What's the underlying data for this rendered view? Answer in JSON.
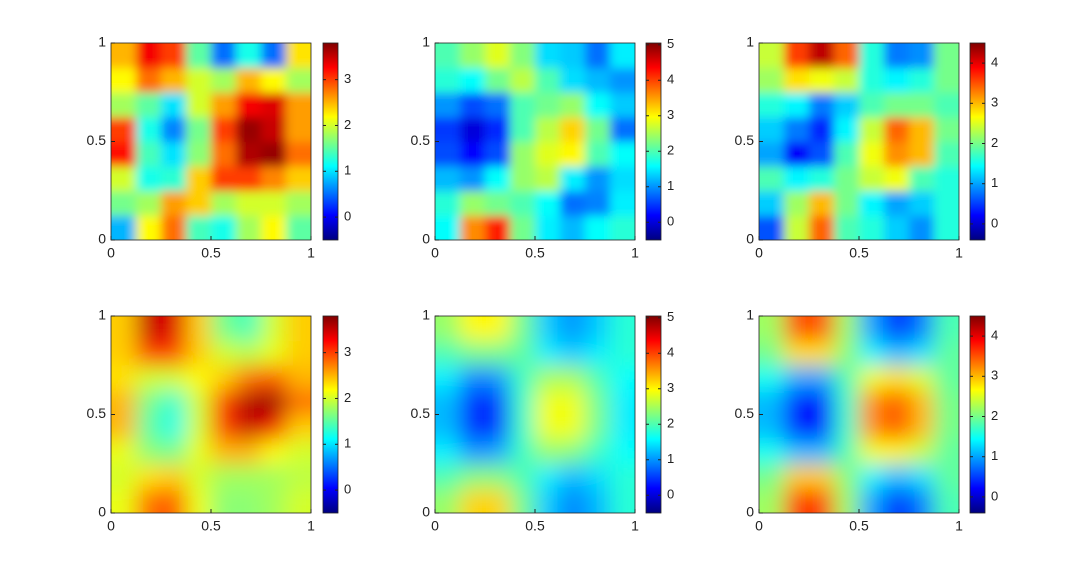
{
  "chart_data": [
    {
      "type": "heatmap",
      "colormap": "jet",
      "xlim": [
        0,
        1
      ],
      "ylim": [
        0,
        1
      ],
      "xticks": [
        0,
        0.5,
        1
      ],
      "yticks": [
        0,
        0.5,
        1
      ],
      "clim": [
        -0.5,
        3.8
      ],
      "cticks": [
        0,
        1,
        2,
        3
      ],
      "smooth": false,
      "z": [
        [
          0.8,
          2.2,
          2.8,
          1.4,
          1.2,
          1.8,
          2.2,
          1.5
        ],
        [
          1.6,
          1.8,
          2.6,
          2.4,
          1.8,
          2.0,
          2.0,
          1.8
        ],
        [
          2.0,
          1.2,
          1.3,
          2.4,
          3.0,
          3.0,
          2.7,
          2.4
        ],
        [
          3.2,
          1.4,
          1.0,
          1.7,
          2.8,
          3.6,
          3.7,
          2.8
        ],
        [
          3.0,
          1.2,
          0.6,
          1.6,
          3.0,
          3.7,
          3.5,
          2.6
        ],
        [
          1.8,
          1.5,
          1.0,
          2.0,
          2.6,
          3.3,
          3.4,
          2.6
        ],
        [
          2.2,
          2.8,
          2.5,
          2.0,
          1.8,
          2.5,
          2.2,
          1.8
        ],
        [
          2.5,
          3.3,
          3.0,
          1.5,
          0.5,
          1.2,
          0.5,
          2.3
        ]
      ]
    },
    {
      "type": "heatmap",
      "colormap": "jet",
      "xlim": [
        0,
        1
      ],
      "ylim": [
        0,
        1
      ],
      "xticks": [
        0,
        0.5,
        1
      ],
      "yticks": [
        0,
        0.5,
        1
      ],
      "clim": [
        -0.5,
        5.05
      ],
      "cticks": [
        0,
        1,
        2,
        3,
        4,
        5
      ],
      "smooth": false,
      "z": [
        [
          1.6,
          3.6,
          4.2,
          2.2,
          1.5,
          1.2,
          1.6,
          1.8
        ],
        [
          1.8,
          2.4,
          2.2,
          2.0,
          1.6,
          0.8,
          0.9,
          1.5
        ],
        [
          1.2,
          1.0,
          1.6,
          2.4,
          2.6,
          1.5,
          1.0,
          1.4
        ],
        [
          0.6,
          0.2,
          0.6,
          2.4,
          2.8,
          3.0,
          2.0,
          1.6
        ],
        [
          0.5,
          0.0,
          0.4,
          2.0,
          2.6,
          3.2,
          2.2,
          0.8
        ],
        [
          1.0,
          0.6,
          0.8,
          2.0,
          2.2,
          2.4,
          1.6,
          1.3
        ],
        [
          1.8,
          1.6,
          2.2,
          2.6,
          2.0,
          1.4,
          1.2,
          1.0
        ],
        [
          2.0,
          2.4,
          2.8,
          2.3,
          1.4,
          1.3,
          0.8,
          1.5
        ]
      ]
    },
    {
      "type": "heatmap",
      "colormap": "jet",
      "xlim": [
        0,
        1
      ],
      "ylim": [
        0,
        1
      ],
      "xticks": [
        0,
        0.5,
        1
      ],
      "yticks": [
        0,
        0.5,
        1
      ],
      "clim": [
        -0.4,
        4.5
      ],
      "cticks": [
        0,
        1,
        2,
        3,
        4
      ],
      "smooth": false,
      "z": [
        [
          0.6,
          2.4,
          3.4,
          1.8,
          1.6,
          1.2,
          0.9,
          1.6
        ],
        [
          1.2,
          2.2,
          3.0,
          2.0,
          1.4,
          1.0,
          1.2,
          1.6
        ],
        [
          1.8,
          1.4,
          1.6,
          2.0,
          2.4,
          2.6,
          1.8,
          1.6
        ],
        [
          1.0,
          0.2,
          0.6,
          1.8,
          2.6,
          3.2,
          3.0,
          1.8
        ],
        [
          1.2,
          0.8,
          0.4,
          1.4,
          2.4,
          3.4,
          3.0,
          2.0
        ],
        [
          1.6,
          1.4,
          0.8,
          1.2,
          1.8,
          2.0,
          2.0,
          1.8
        ],
        [
          2.2,
          2.8,
          2.6,
          2.4,
          1.6,
          1.4,
          1.6,
          2.0
        ],
        [
          2.4,
          3.6,
          4.2,
          3.4,
          1.6,
          0.8,
          0.9,
          2.0
        ]
      ]
    },
    {
      "type": "heatmap",
      "colormap": "jet",
      "xlim": [
        0,
        1
      ],
      "ylim": [
        0,
        1
      ],
      "xticks": [
        0,
        0.5,
        1
      ],
      "yticks": [
        0,
        0.5,
        1
      ],
      "clim": [
        -0.5,
        3.8
      ],
      "cticks": [
        0,
        1,
        2,
        3
      ],
      "smooth": true,
      "z": [
        [
          2.1,
          2.8,
          2.9,
          2.1,
          1.7,
          1.7,
          1.8,
          2.0
        ],
        [
          2.0,
          2.3,
          2.4,
          2.0,
          1.8,
          1.8,
          1.8,
          1.9
        ],
        [
          2.1,
          1.7,
          1.6,
          2.1,
          2.5,
          2.5,
          2.2,
          2.0
        ],
        [
          2.5,
          1.5,
          1.2,
          2.0,
          3.0,
          3.5,
          3.3,
          2.4
        ],
        [
          2.5,
          1.6,
          1.3,
          2.0,
          3.0,
          3.6,
          3.7,
          2.8
        ],
        [
          2.3,
          2.0,
          2.0,
          2.2,
          2.4,
          2.8,
          2.9,
          2.5
        ],
        [
          2.4,
          3.0,
          3.0,
          2.4,
          2.0,
          1.9,
          2.1,
          2.4
        ],
        [
          2.4,
          3.5,
          3.4,
          2.4,
          1.6,
          1.4,
          2.0,
          2.4
        ]
      ]
    },
    {
      "type": "heatmap",
      "colormap": "jet",
      "xlim": [
        0,
        1
      ],
      "ylim": [
        0,
        1
      ],
      "xticks": [
        0,
        0.5,
        1
      ],
      "yticks": [
        0,
        0.5,
        1
      ],
      "clim": [
        -0.5,
        5.05
      ],
      "cticks": [
        0,
        1,
        2,
        3,
        4,
        5
      ],
      "smooth": true,
      "z": [
        [
          2.4,
          3.2,
          3.2,
          2.2,
          1.3,
          0.9,
          1.2,
          1.8
        ],
        [
          2.0,
          2.3,
          2.3,
          2.0,
          1.5,
          1.2,
          1.4,
          1.8
        ],
        [
          1.5,
          1.0,
          1.1,
          1.9,
          2.4,
          2.3,
          1.9,
          1.6
        ],
        [
          1.2,
          0.4,
          0.5,
          1.9,
          2.9,
          2.9,
          2.2,
          1.5
        ],
        [
          1.2,
          0.4,
          0.5,
          1.9,
          2.9,
          2.9,
          2.2,
          1.5
        ],
        [
          1.5,
          0.9,
          1.0,
          1.9,
          2.5,
          2.5,
          2.0,
          1.6
        ],
        [
          2.0,
          2.2,
          2.2,
          2.1,
          1.5,
          1.3,
          1.5,
          1.8
        ],
        [
          2.4,
          3.0,
          3.0,
          2.2,
          1.3,
          1.0,
          1.3,
          1.8
        ]
      ]
    },
    {
      "type": "heatmap",
      "colormap": "jet",
      "xlim": [
        0,
        1
      ],
      "ylim": [
        0,
        1
      ],
      "xticks": [
        0,
        0.5,
        1
      ],
      "yticks": [
        0,
        0.5,
        1
      ],
      "clim": [
        -0.4,
        4.5
      ],
      "cticks": [
        0,
        1,
        2,
        3,
        4
      ],
      "smooth": true,
      "z": [
        [
          2.2,
          3.6,
          3.6,
          2.2,
          1.0,
          0.4,
          0.8,
          1.8
        ],
        [
          2.0,
          2.9,
          2.9,
          2.1,
          1.4,
          1.1,
          1.3,
          1.9
        ],
        [
          1.5,
          1.1,
          1.1,
          1.8,
          2.6,
          2.7,
          2.4,
          1.9
        ],
        [
          1.1,
          0.3,
          0.3,
          1.7,
          3.2,
          3.5,
          3.0,
          2.0
        ],
        [
          1.1,
          0.3,
          0.3,
          1.7,
          3.2,
          3.5,
          3.0,
          2.0
        ],
        [
          1.5,
          1.0,
          1.0,
          1.8,
          2.6,
          2.8,
          2.5,
          1.9
        ],
        [
          2.0,
          2.8,
          2.8,
          2.1,
          1.4,
          1.1,
          1.3,
          1.9
        ],
        [
          2.2,
          3.5,
          3.5,
          2.2,
          1.0,
          0.4,
          0.8,
          1.8
        ]
      ]
    }
  ]
}
